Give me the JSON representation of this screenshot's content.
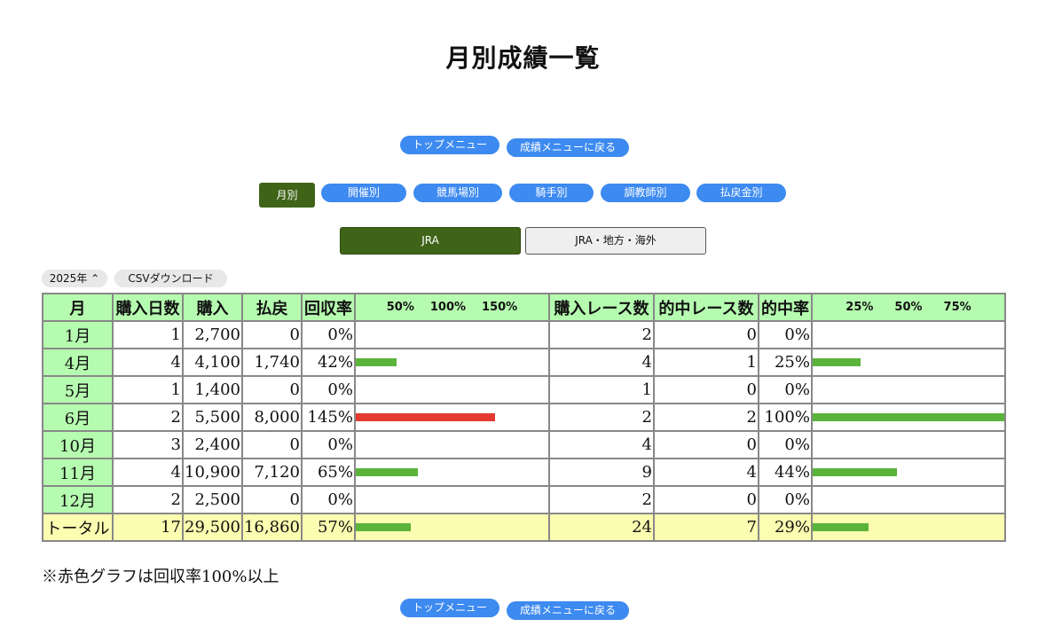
{
  "page": {
    "title": "月別成績一覧"
  },
  "nav_top": {
    "top_menu": "トップメニュー",
    "back": "成績メニューに戻る"
  },
  "tabs": [
    "月別",
    "開催別",
    "競馬場別",
    "騎手別",
    "調教師別",
    "払戻金別"
  ],
  "active_tab": "月別",
  "segment": {
    "jra": "JRA",
    "other": "JRA・地方・海外",
    "selected": "JRA"
  },
  "year_select": {
    "value": "2025年"
  },
  "csv_button": "CSVダウンロード",
  "table": {
    "headers": {
      "month": "月",
      "days": "購入日数",
      "purchase": "購入",
      "payout": "払戻",
      "recovery": "回収率",
      "recovery_scale": [
        "50%",
        "100%",
        "150%"
      ],
      "races": "購入レース数",
      "hits": "的中レース数",
      "hit_rate": "的中率",
      "hit_scale": [
        "25%",
        "50%",
        "75%"
      ]
    },
    "rows": [
      {
        "month": "1月",
        "days": "1",
        "purchase": "2,700",
        "payout": "0",
        "recovery": "0%",
        "races": "2",
        "hits": "0",
        "hit_rate": "0%",
        "rec_value": 0,
        "hit_value": 0
      },
      {
        "month": "4月",
        "days": "4",
        "purchase": "4,100",
        "payout": "1,740",
        "recovery": "42%",
        "races": "4",
        "hits": "1",
        "hit_rate": "25%",
        "rec_value": 42,
        "hit_value": 25
      },
      {
        "month": "5月",
        "days": "1",
        "purchase": "1,400",
        "payout": "0",
        "recovery": "0%",
        "races": "1",
        "hits": "0",
        "hit_rate": "0%",
        "rec_value": 0,
        "hit_value": 0
      },
      {
        "month": "6月",
        "days": "2",
        "purchase": "5,500",
        "payout": "8,000",
        "recovery": "145%",
        "races": "2",
        "hits": "2",
        "hit_rate": "100%",
        "rec_value": 145,
        "hit_value": 100
      },
      {
        "month": "10月",
        "days": "3",
        "purchase": "2,400",
        "payout": "0",
        "recovery": "0%",
        "races": "4",
        "hits": "0",
        "hit_rate": "0%",
        "rec_value": 0,
        "hit_value": 0
      },
      {
        "month": "11月",
        "days": "4",
        "purchase": "10,900",
        "payout": "7,120",
        "recovery": "65%",
        "races": "9",
        "hits": "4",
        "hit_rate": "44%",
        "rec_value": 65,
        "hit_value": 44
      },
      {
        "month": "12月",
        "days": "2",
        "purchase": "2,500",
        "payout": "0",
        "recovery": "0%",
        "races": "2",
        "hits": "0",
        "hit_rate": "0%",
        "rec_value": 0,
        "hit_value": 0
      }
    ],
    "total": {
      "month": "トータル",
      "days": "17",
      "purchase": "29,500",
      "payout": "16,860",
      "recovery": "57%",
      "races": "24",
      "hits": "7",
      "hit_rate": "29%",
      "rec_value": 57,
      "hit_value": 29
    }
  },
  "colors": {
    "bar_normal": "#5ab43c",
    "bar_over100": "#e53a2f",
    "header_bg": "#b6fcb0",
    "total_bg": "#fbfdb0",
    "active_tab": "#3f6418",
    "pill": "#3d8af0"
  },
  "note": "※赤色グラフは回収率100%以上"
}
